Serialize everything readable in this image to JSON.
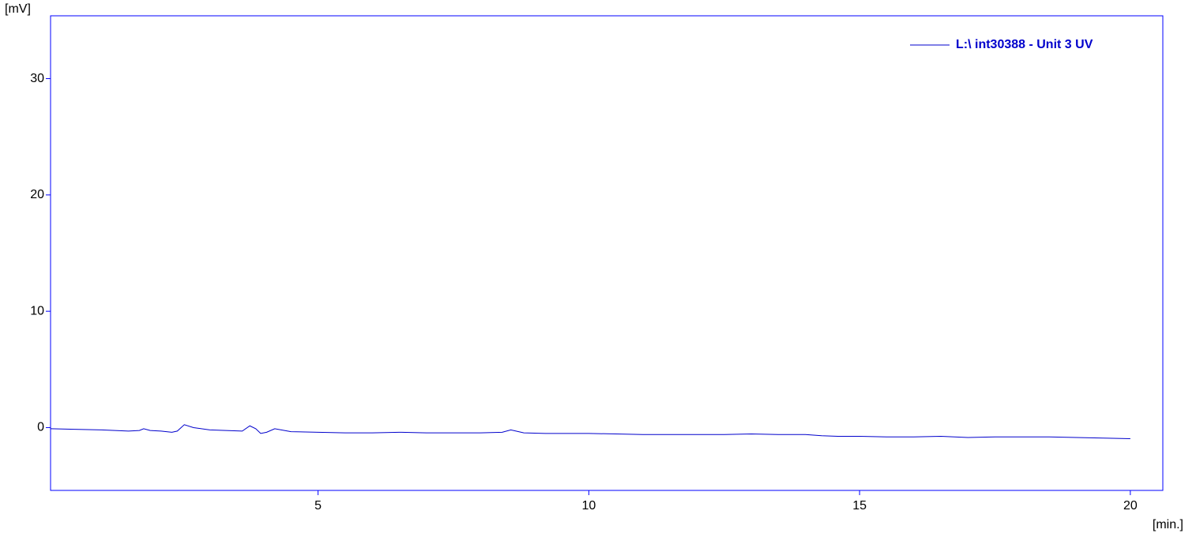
{
  "chart_data": {
    "type": "line",
    "y_label": "[mV]",
    "x_label": "[min.]",
    "x": [
      0.06,
      0.5,
      1,
      1.5,
      1.7,
      1.78,
      1.9,
      2.1,
      2.3,
      2.4,
      2.53,
      2.7,
      3.0,
      3.3,
      3.6,
      3.74,
      3.85,
      3.94,
      4.05,
      4.2,
      4.5,
      5,
      5.5,
      6,
      6.5,
      7,
      7.5,
      8,
      8.4,
      8.56,
      8.8,
      9.2,
      9.6,
      10,
      10.5,
      11,
      11.5,
      12,
      12.5,
      13,
      13.5,
      14,
      14.3,
      14.6,
      15,
      15.5,
      16,
      16.5,
      17,
      17.5,
      18,
      18.5,
      19,
      19.5,
      20
    ],
    "series": [
      {
        "name": "L:\\ int30388 - Unit 3 UV",
        "color": "#0000cc",
        "values": [
          -0.1,
          -0.15,
          -0.2,
          -0.3,
          -0.25,
          -0.1,
          -0.25,
          -0.3,
          -0.4,
          -0.3,
          0.25,
          0,
          -0.2,
          -0.25,
          -0.3,
          0.15,
          -0.1,
          -0.5,
          -0.4,
          -0.1,
          -0.35,
          -0.4,
          -0.45,
          -0.45,
          -0.4,
          -0.45,
          -0.45,
          -0.45,
          -0.4,
          -0.2,
          -0.45,
          -0.5,
          -0.5,
          -0.5,
          -0.55,
          -0.6,
          -0.6,
          -0.6,
          -0.6,
          -0.55,
          -0.6,
          -0.6,
          -0.7,
          -0.75,
          -0.75,
          -0.8,
          -0.8,
          -0.75,
          -0.85,
          -0.8,
          -0.8,
          -0.8,
          -0.85,
          -0.9,
          -0.95
        ]
      }
    ],
    "xlim": [
      0.06,
      20.6
    ],
    "xticks": [
      5,
      10,
      15,
      20
    ],
    "ylim": [
      -5.4,
      35.4
    ],
    "yticks": [
      0,
      10,
      20,
      30
    ],
    "legend": "top-right",
    "frame_color": "#0000ff"
  }
}
